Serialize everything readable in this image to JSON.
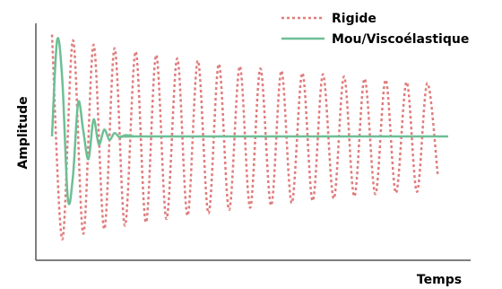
{
  "chart_data": {
    "type": "line",
    "title": "",
    "xlabel": "Temps",
    "ylabel": "Amplitude",
    "grid": false,
    "legend_position": "top-right",
    "ylim": [
      -1.0,
      1.0
    ],
    "series": [
      {
        "name": "Rigide",
        "color": "#e07b7b",
        "style": "dashed",
        "x": [
          0.0,
          0.026,
          0.053,
          0.079,
          0.105,
          0.132,
          0.158,
          0.184,
          0.211,
          0.237,
          0.263,
          0.289,
          0.316,
          0.342,
          0.368,
          0.395,
          0.421,
          0.447,
          0.474,
          0.5,
          0.526,
          0.553,
          0.579,
          0.605,
          0.632,
          0.658,
          0.684,
          0.711,
          0.737,
          0.763,
          0.789,
          0.816,
          0.842,
          0.868,
          0.895,
          0.921,
          0.947,
          0.974
        ],
        "y": [
          0.9,
          -0.91,
          0.85,
          -0.86,
          0.81,
          -0.82,
          0.78,
          -0.79,
          0.75,
          -0.76,
          0.72,
          -0.73,
          0.69,
          -0.7,
          0.67,
          -0.68,
          0.64,
          -0.65,
          0.62,
          -0.63,
          0.6,
          -0.61,
          0.58,
          -0.59,
          0.56,
          -0.57,
          0.55,
          -0.55,
          0.53,
          -0.53,
          0.51,
          -0.51,
          0.5,
          -0.5,
          0.48,
          -0.49,
          0.47,
          -0.35
        ]
      },
      {
        "name": "Mou/Viscoélastique",
        "color": "#6dbf95",
        "style": "solid",
        "x": [
          0.0,
          0.013,
          0.026,
          0.04,
          0.053,
          0.066,
          0.079,
          0.092,
          0.105,
          0.118,
          0.132,
          0.145,
          0.158,
          0.171,
          0.184,
          0.211,
          0.237,
          1.0
        ],
        "y": [
          0.0,
          0.85,
          0.5,
          -0.55,
          -0.35,
          0.3,
          0.05,
          -0.2,
          0.15,
          -0.07,
          0.06,
          -0.03,
          0.03,
          -0.01,
          0.01,
          0.0,
          0.0,
          0.0
        ]
      }
    ]
  }
}
